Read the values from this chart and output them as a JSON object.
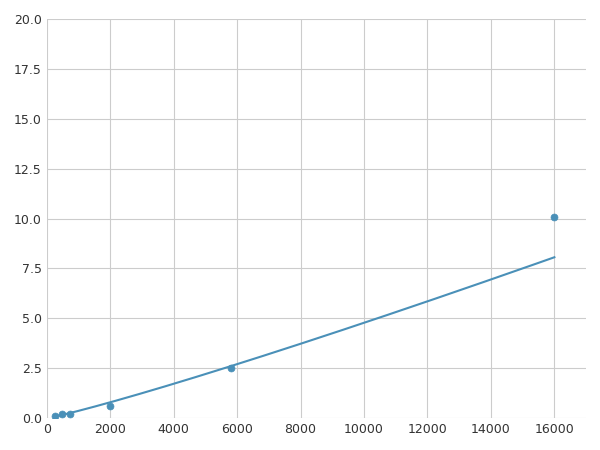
{
  "x": [
    250,
    500,
    750,
    2000,
    5800,
    16000
  ],
  "y": [
    0.1,
    0.2,
    0.2,
    0.6,
    2.5,
    10.1
  ],
  "line_color": "#4a90b8",
  "marker_color": "#4a90b8",
  "marker_size": 5,
  "xlim": [
    0,
    17000
  ],
  "ylim": [
    0,
    20.0
  ],
  "xticks": [
    0,
    2000,
    4000,
    6000,
    8000,
    10000,
    12000,
    14000,
    16000
  ],
  "yticks": [
    0.0,
    2.5,
    5.0,
    7.5,
    10.0,
    12.5,
    15.0,
    17.5,
    20.0
  ],
  "grid": true,
  "background_color": "#ffffff",
  "figsize": [
    6.0,
    4.5
  ],
  "dpi": 100
}
